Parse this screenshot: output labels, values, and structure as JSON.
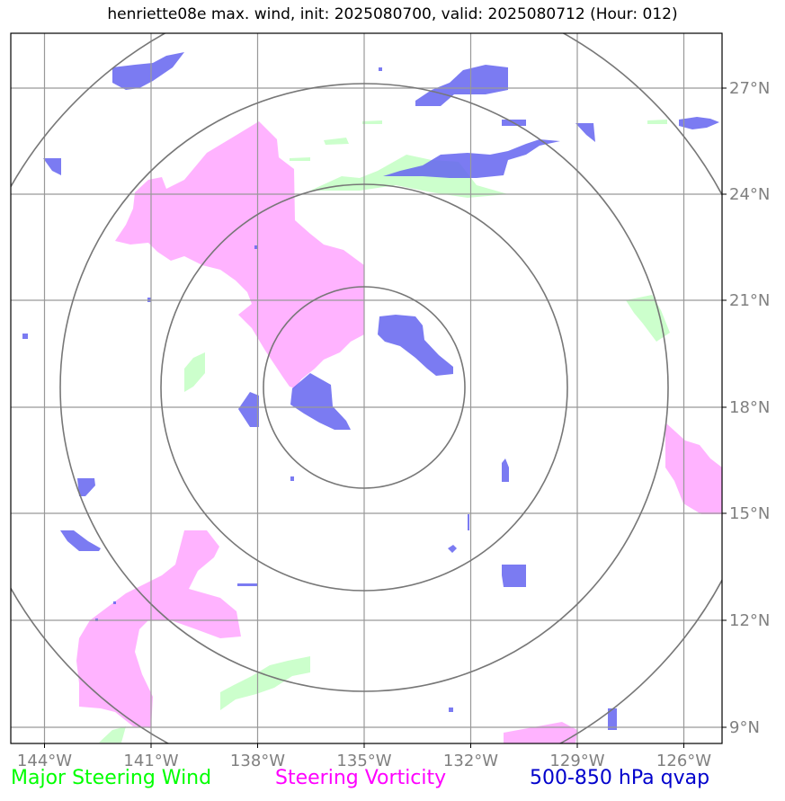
{
  "title": "henriette08e max. wind, init: 2025080700, valid: 2025080712 (Hour: 012)",
  "map": {
    "lon_labels": [
      "144°W",
      "141°W",
      "138°W",
      "135°W",
      "132°W",
      "129°W",
      "126°W"
    ],
    "lat_labels": [
      "27°N",
      "24°N",
      "21°N",
      "18°N",
      "15°N",
      "12°N",
      "9°N"
    ],
    "lon_values": [
      -144,
      -141,
      -138,
      -135,
      -132,
      -129,
      -126
    ],
    "lat_values": [
      27,
      24,
      21,
      18,
      15,
      12,
      9
    ],
    "center": {
      "lon": -135,
      "lat": 18.5
    },
    "range_rings": 4
  },
  "legend": {
    "wind": {
      "label": "Major Steering Wind",
      "color": "#00ff00"
    },
    "vorticity": {
      "label": "Steering Vorticity",
      "color": "#ff00ff"
    },
    "qvap": {
      "label": "500-850 hPa qvap",
      "color": "#0000cc"
    }
  },
  "colors": {
    "vorticity_fill": "#ffb3ff",
    "wind_fill": "#ccffcc",
    "qvap_fill": "#6464f0",
    "grid": "#999999",
    "ring": "#777777",
    "label": "#808080"
  }
}
